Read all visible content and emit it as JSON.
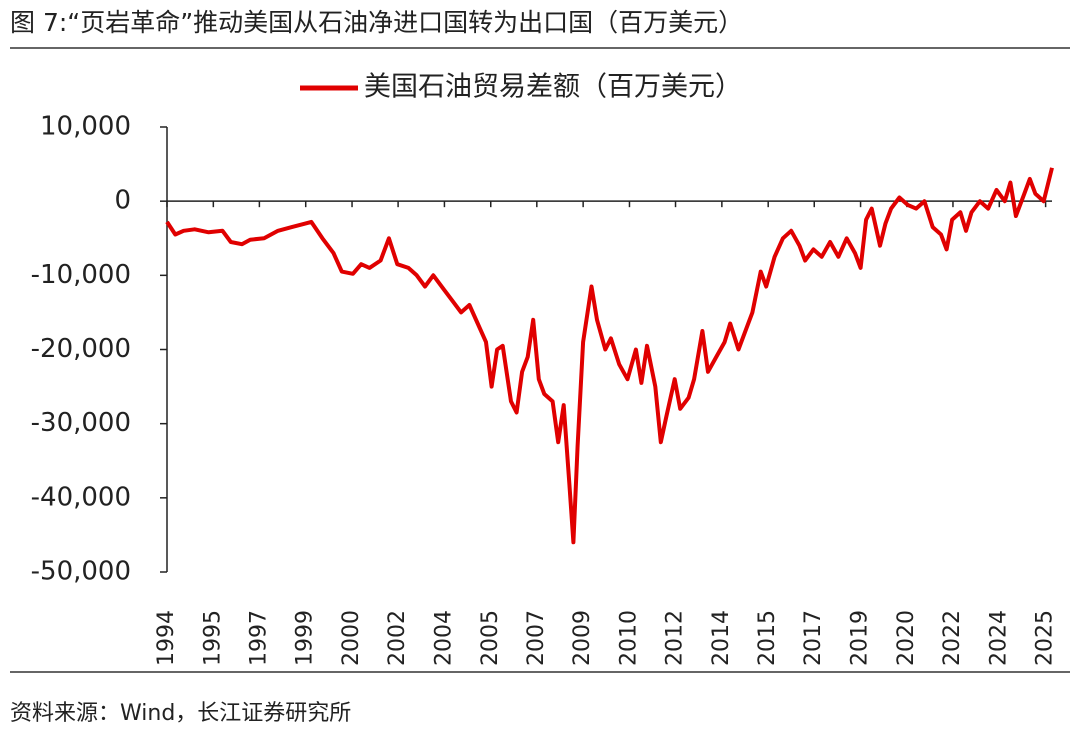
{
  "chart_data": {
    "type": "line",
    "title": "图 7:“页岩革命”推动美国从石油净进口国转为出口国（百万美元）",
    "source": "资料来源：Wind，长江证券研究所",
    "x": [
      1994.0,
      1994.3,
      1994.6,
      1995.0,
      1995.5,
      1996.0,
      1996.3,
      1996.7,
      1997.0,
      1997.5,
      1998.0,
      1998.5,
      1999.0,
      1999.2,
      1999.6,
      2000.0,
      2000.3,
      2000.7,
      2001.0,
      2001.3,
      2001.7,
      2002.0,
      2002.3,
      2002.7,
      2003.0,
      2003.3,
      2003.6,
      2004.0,
      2004.3,
      2004.6,
      2004.9,
      2005.2,
      2005.5,
      2005.7,
      2005.9,
      2006.1,
      2006.4,
      2006.6,
      2006.8,
      2007.0,
      2007.2,
      2007.4,
      2007.6,
      2007.9,
      2008.1,
      2008.3,
      2008.5,
      2008.65,
      2008.8,
      2009.0,
      2009.2,
      2009.3,
      2009.5,
      2009.8,
      2010.0,
      2010.3,
      2010.6,
      2010.9,
      2011.1,
      2011.3,
      2011.6,
      2011.8,
      2012.0,
      2012.3,
      2012.5,
      2012.8,
      2013.0,
      2013.3,
      2013.5,
      2013.8,
      2014.1,
      2014.3,
      2014.6,
      2014.9,
      2015.1,
      2015.4,
      2015.6,
      2015.9,
      2016.2,
      2016.5,
      2016.8,
      2017.0,
      2017.3,
      2017.6,
      2017.9,
      2018.2,
      2018.5,
      2018.8,
      2019.0,
      2019.2,
      2019.4,
      2019.7,
      2019.9,
      2020.1,
      2020.4,
      2020.7,
      2021.0,
      2021.3,
      2021.6,
      2021.9,
      2022.1,
      2022.3,
      2022.6,
      2022.8,
      2023.0,
      2023.3,
      2023.6,
      2023.9,
      2024.2,
      2024.4,
      2024.6,
      2024.9,
      2025.1,
      2025.3,
      2025.6,
      2025.9
    ],
    "series": [
      {
        "name": "美国石油贸易差额（百万美元）",
        "color": "#e00000",
        "values": [
          -2800,
          -4500,
          -4000,
          -3800,
          -4200,
          -4000,
          -5500,
          -5800,
          -5200,
          -5000,
          -4000,
          -3500,
          -3000,
          -2800,
          -5000,
          -7000,
          -9500,
          -9800,
          -8500,
          -9000,
          -8000,
          -5000,
          -8500,
          -9000,
          -10000,
          -11500,
          -10000,
          -12000,
          -13500,
          -15000,
          -14000,
          -16500,
          -19000,
          -25000,
          -20000,
          -19500,
          -27000,
          -28500,
          -23000,
          -21000,
          -16000,
          -24000,
          -26000,
          -27000,
          -32500,
          -27500,
          -38000,
          -46000,
          -33000,
          -19000,
          -14000,
          -11500,
          -16000,
          -20000,
          -18500,
          -22000,
          -24000,
          -20000,
          -24500,
          -19500,
          -25000,
          -32500,
          -29000,
          -24000,
          -28000,
          -26500,
          -24000,
          -17500,
          -23000,
          -21000,
          -19000,
          -16500,
          -20000,
          -17000,
          -15000,
          -9500,
          -11500,
          -7500,
          -5000,
          -4000,
          -6000,
          -8000,
          -6500,
          -7500,
          -5500,
          -7500,
          -5000,
          -7000,
          -9000,
          -2500,
          -1000,
          -6000,
          -3000,
          -1000,
          500,
          -500,
          -1000,
          0,
          -3500,
          -4500,
          -6500,
          -2500,
          -1500,
          -4000,
          -1500,
          0,
          -1000,
          1500,
          0,
          2500,
          -2000,
          1000,
          3000,
          1000,
          0,
          4500
        ]
      }
    ],
    "xlim": [
      1994,
      2025.9
    ],
    "xticks": [
      1994,
      {
        "value": 1995.67,
        "label": "1995"
      },
      {
        "value": 1997.33,
        "label": "1997"
      },
      1999,
      {
        "value": 2000.67,
        "label": "2000"
      },
      {
        "value": 2002.33,
        "label": "2002"
      },
      2004,
      {
        "value": 2005.67,
        "label": "2005"
      },
      {
        "value": 2007.33,
        "label": "2007"
      },
      2009,
      {
        "value": 2010.67,
        "label": "2010"
      },
      {
        "value": 2012.33,
        "label": "2012"
      },
      2014,
      {
        "value": 2015.67,
        "label": "2015"
      },
      {
        "value": 2017.33,
        "label": "2017"
      },
      2019,
      {
        "value": 2020.67,
        "label": "2020"
      },
      {
        "value": 2022.33,
        "label": "2022"
      },
      2024,
      {
        "value": 2025.67,
        "label": "2025"
      }
    ],
    "ylim": [
      -50000,
      10000
    ],
    "yticks": [
      {
        "value": 10000,
        "label": "10,000"
      },
      0,
      {
        "value": -10000,
        "label": "-10,000"
      },
      {
        "value": -20000,
        "label": "-20,000"
      },
      {
        "value": -30000,
        "label": "-30,000"
      },
      {
        "value": -40000,
        "label": "-40,000"
      },
      {
        "value": -50000,
        "label": "-50,000"
      }
    ],
    "grid": false,
    "legend": "top"
  }
}
